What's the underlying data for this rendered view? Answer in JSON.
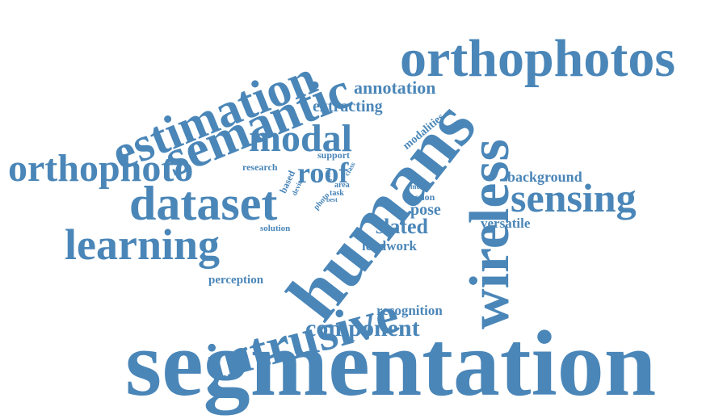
{
  "color": "#4a86b8",
  "words": [
    "segmentation",
    "humans",
    "wireless",
    "intrusive",
    "orthophotos",
    "semantic",
    "estimation",
    "dataset",
    "learning",
    "orthophoto",
    "sensing",
    "modal",
    "component",
    "roof",
    "annotation",
    "extracting",
    "slated",
    "pose",
    "background",
    "recognition",
    "leadwork",
    "versatile",
    "perception",
    "modalities",
    "research",
    "support",
    "action",
    "solution",
    "based",
    "device",
    "photo",
    "task",
    "area",
    "class",
    "model",
    "best",
    "pixel"
  ]
}
